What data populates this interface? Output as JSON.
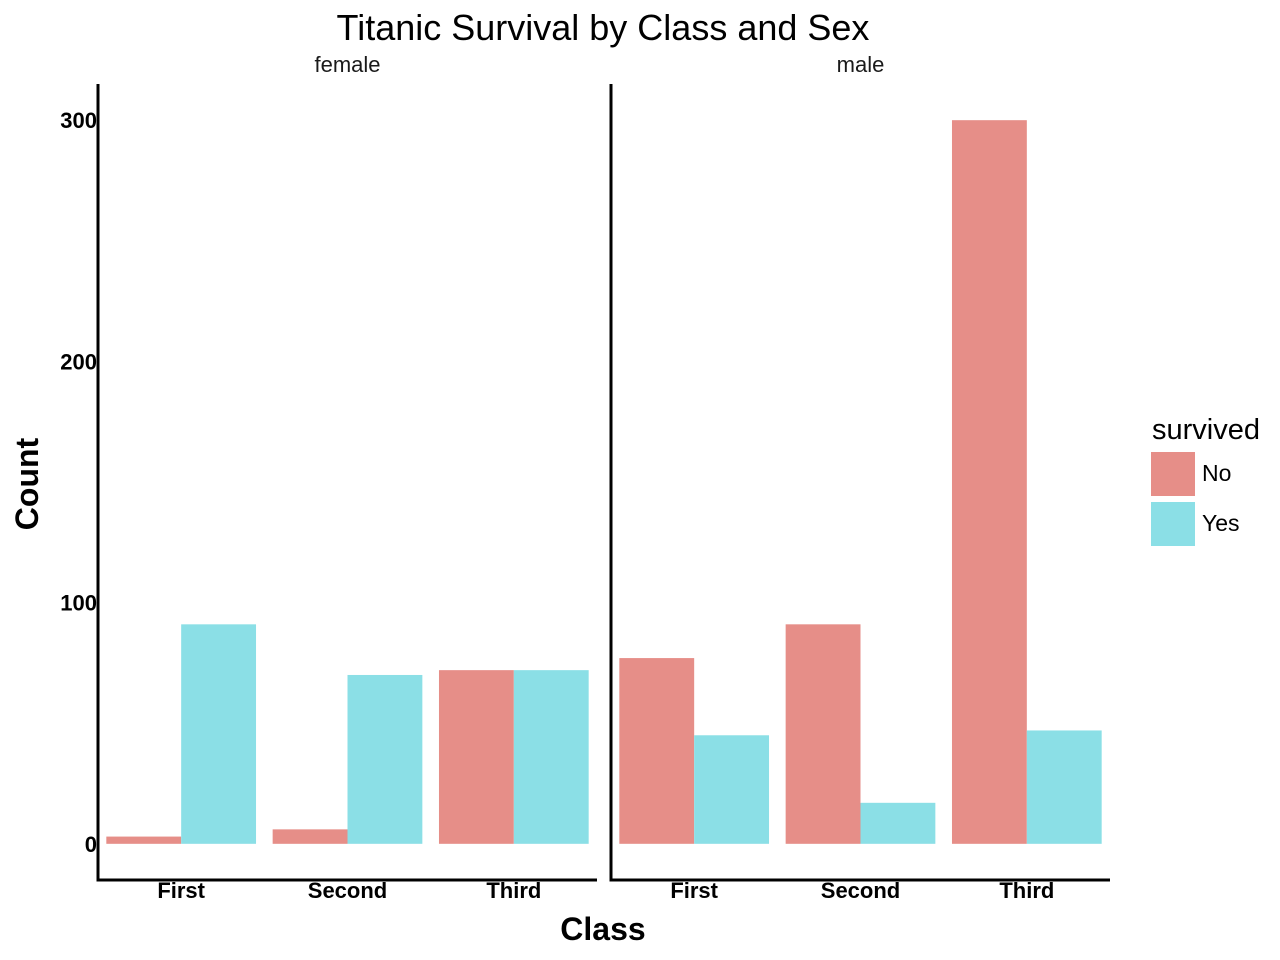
{
  "chart_data": {
    "type": "bar",
    "title": "Titanic Survival by Class and Sex",
    "xlabel": "Class",
    "ylabel": "Count",
    "ylim": [
      -15,
      315
    ],
    "yticks": [
      0,
      100,
      200,
      300
    ],
    "categories": [
      "First",
      "Second",
      "Third"
    ],
    "grid": false,
    "legend": {
      "title": "survived",
      "position": "right",
      "entries": [
        {
          "label": "No",
          "color": "#E68E88"
        },
        {
          "label": "Yes",
          "color": "#8BDFE6"
        }
      ]
    },
    "facets": [
      {
        "name": "female",
        "series": [
          {
            "name": "No",
            "color": "#E68E88",
            "values": [
              3,
              6,
              72
            ]
          },
          {
            "name": "Yes",
            "color": "#8BDFE6",
            "values": [
              91,
              70,
              72
            ]
          }
        ]
      },
      {
        "name": "male",
        "series": [
          {
            "name": "No",
            "color": "#E68E88",
            "values": [
              77,
              91,
              300
            ]
          },
          {
            "name": "Yes",
            "color": "#8BDFE6",
            "values": [
              45,
              17,
              47
            ]
          }
        ]
      }
    ]
  }
}
